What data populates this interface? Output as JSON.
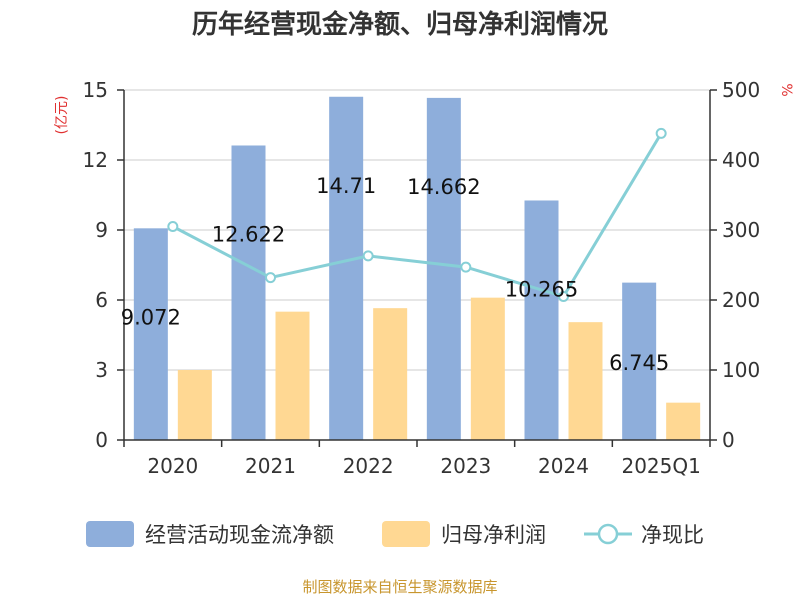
{
  "chart_data": {
    "type": "bar",
    "title": "历年经营现金净额、归母净利润情况",
    "categories": [
      "2020",
      "2021",
      "2022",
      "2023",
      "2024",
      "2025Q1"
    ],
    "series": [
      {
        "name": "经营活动现金流净额",
        "type": "bar",
        "axis": "left",
        "values": [
          9.072,
          12.622,
          14.71,
          14.662,
          10.265,
          6.745
        ],
        "labels": [
          "9.072",
          "12.622",
          "14.71",
          "14.662",
          "10.265",
          "6.745"
        ],
        "color": "#8EAEDB"
      },
      {
        "name": "归母净利润",
        "type": "bar",
        "axis": "left",
        "values": [
          3.0,
          5.5,
          5.65,
          6.1,
          5.05,
          1.6
        ],
        "color": "#FFD893"
      },
      {
        "name": "净现比",
        "type": "line",
        "axis": "right",
        "values": [
          305,
          232,
          263,
          247,
          205,
          438
        ],
        "color": "#86CFD6"
      }
    ],
    "y_left": {
      "unit": "(亿元)",
      "ylim": [
        0,
        15
      ],
      "ticks": [
        "0",
        "3",
        "6",
        "9",
        "12",
        "15"
      ]
    },
    "y_right": {
      "unit": "%",
      "ylim": [
        0,
        500
      ],
      "ticks": [
        "0",
        "100",
        "200",
        "300",
        "400",
        "500"
      ]
    },
    "grid": true,
    "legend_position": "bottom",
    "source": "制图数据来自恒生聚源数据库",
    "colors": {
      "unit_text": "#E03030",
      "source_text": "#C8962E",
      "axis": "#333333",
      "grid": "#CCCCCC"
    }
  }
}
